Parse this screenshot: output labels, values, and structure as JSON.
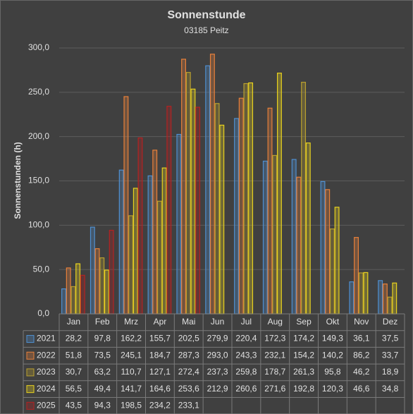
{
  "chart_data": {
    "type": "bar",
    "title": "Sonnenstunde",
    "subtitle": "03185 Peitz",
    "y_label": "Sonnenstunden (h)",
    "categories": [
      "Jan",
      "Feb",
      "Mrz",
      "Apr",
      "Mai",
      "Jun",
      "Jul",
      "Aug",
      "Sep",
      "Okt",
      "Nov",
      "Dez"
    ],
    "series": [
      {
        "name": "2021",
        "color": "#4f8fd0",
        "values": [
          28.2,
          97.8,
          162.2,
          155.7,
          202.5,
          279.9,
          220.4,
          172.3,
          174.2,
          149.3,
          36.1,
          37.5
        ],
        "value_labels": [
          "28,2",
          "97,8",
          "162,2",
          "155,7",
          "202,5",
          "279,9",
          "220,4",
          "172,3",
          "174,2",
          "149,3",
          "36,1",
          "37,5"
        ]
      },
      {
        "name": "2022",
        "color": "#e8803a",
        "values": [
          51.8,
          73.5,
          245.1,
          184.7,
          287.3,
          293.0,
          243.3,
          232.1,
          154.2,
          140.2,
          86.2,
          33.7
        ],
        "value_labels": [
          "51,8",
          "73,5",
          "245,1",
          "184,7",
          "287,3",
          "293,0",
          "243,3",
          "232,1",
          "154,2",
          "140,2",
          "86,2",
          "33,7"
        ]
      },
      {
        "name": "2023",
        "color": "#b9a02e",
        "values": [
          30.7,
          63.2,
          110.7,
          127.1,
          272.4,
          237.3,
          259.8,
          178.7,
          261.3,
          95.8,
          46.2,
          18.9
        ],
        "value_labels": [
          "30,7",
          "63,2",
          "110,7",
          "127,1",
          "272,4",
          "237,3",
          "259,8",
          "178,7",
          "261,3",
          "95,8",
          "46,2",
          "18,9"
        ]
      },
      {
        "name": "2024",
        "color": "#e8d21e",
        "values": [
          56.5,
          49.4,
          141.7,
          164.6,
          253.6,
          212.9,
          260.6,
          271.6,
          192.8,
          120.3,
          46.6,
          34.8
        ],
        "value_labels": [
          "56,5",
          "49,4",
          "141,7",
          "164,6",
          "253,6",
          "212,9",
          "260,6",
          "271,6",
          "192,8",
          "120,3",
          "46,6",
          "34,8"
        ]
      },
      {
        "name": "2025",
        "color": "#b42222",
        "values": [
          43.5,
          94.3,
          198.5,
          234.2,
          233.1,
          null,
          null,
          null,
          null,
          null,
          null,
          null
        ],
        "value_labels": [
          "43,5",
          "94,3",
          "198,5",
          "234,2",
          "233,1",
          null,
          null,
          null,
          null,
          null,
          null,
          null
        ]
      }
    ],
    "ylim": [
      0,
      300
    ],
    "yticks": [
      {
        "value": 0,
        "label": "0,0"
      },
      {
        "value": 50,
        "label": "50,0"
      },
      {
        "value": 100,
        "label": "100,0"
      },
      {
        "value": 150,
        "label": "150,0"
      },
      {
        "value": 200,
        "label": "200,0"
      },
      {
        "value": 250,
        "label": "250,0"
      },
      {
        "value": 300,
        "label": "300,0"
      }
    ],
    "grid": true
  }
}
